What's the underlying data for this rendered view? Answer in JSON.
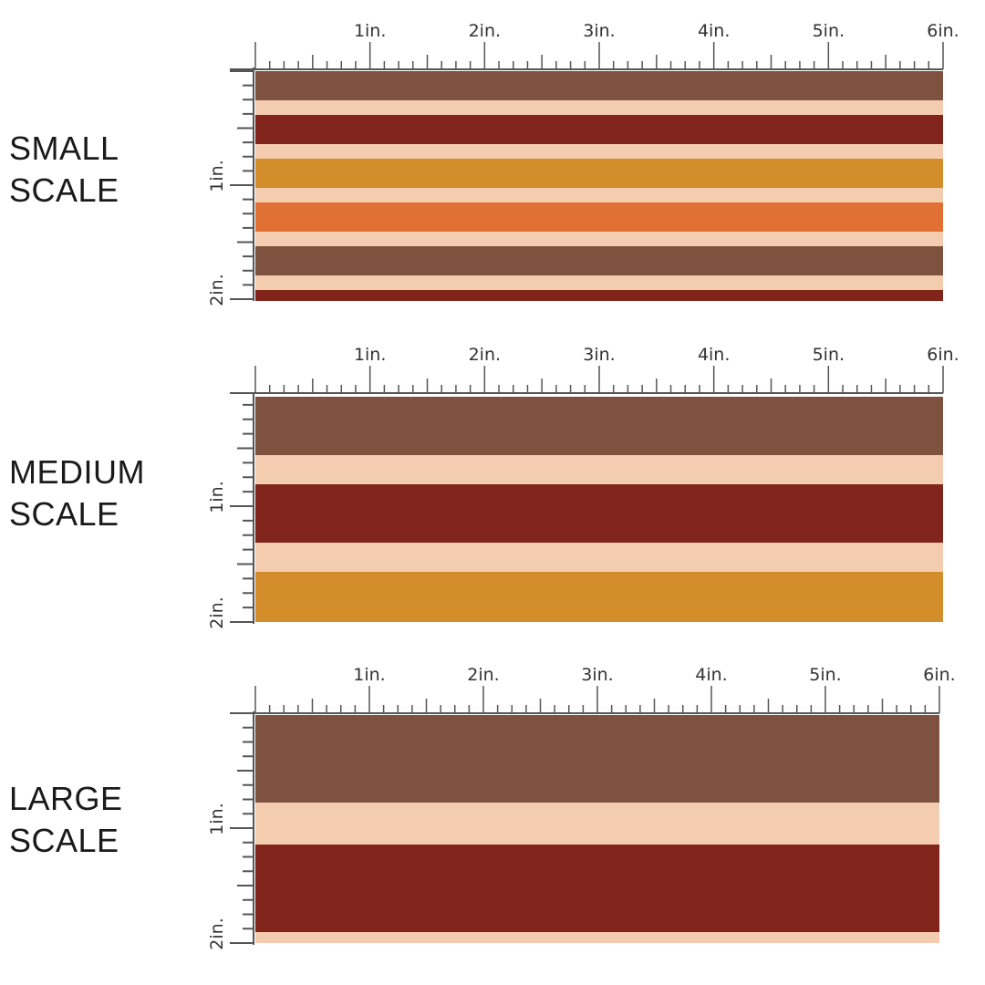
{
  "ruler": {
    "h_labels": [
      "1in.",
      "2in.",
      "3in.",
      "4in.",
      "5in.",
      "6in."
    ],
    "v_labels": [
      "1in.",
      "2in."
    ]
  },
  "colors": {
    "brown": "#7f5240",
    "cream": "#f4cdb0",
    "maroon": "#81241b",
    "mustard": "#d38d2b",
    "orange": "#e07034",
    "tick": "#555555"
  },
  "panels": [
    {
      "id": "small",
      "label_line1": "SMALL",
      "label_line2": "SCALE",
      "stripes": [
        "brown",
        "cream",
        "maroon",
        "cream",
        "mustard",
        "cream",
        "orange",
        "cream",
        "brown",
        "cream",
        "maroon"
      ]
    },
    {
      "id": "medium",
      "label_line1": "MEDIUM",
      "label_line2": "SCALE",
      "stripes": [
        "brown",
        "cream",
        "maroon",
        "cream",
        "mustard"
      ]
    },
    {
      "id": "large",
      "label_line1": "LARGE",
      "label_line2": "SCALE",
      "stripes": [
        "brown",
        "cream",
        "maroon",
        "cream"
      ]
    }
  ]
}
